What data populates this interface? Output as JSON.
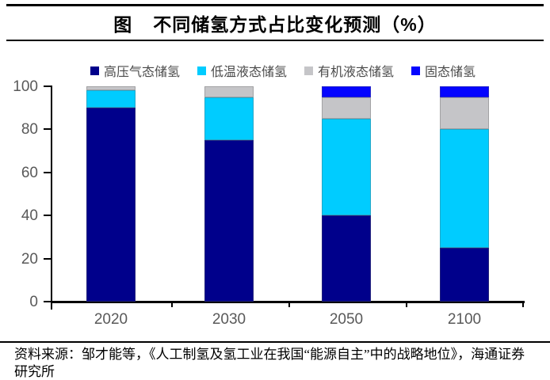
{
  "title": {
    "prefix": "图",
    "text": "不同储氢方式占比变化预测（%）"
  },
  "chart_data": {
    "type": "bar",
    "stacked": true,
    "title": "不同储氢方式占比变化预测（%）",
    "categories": [
      "2020",
      "2030",
      "2050",
      "2100"
    ],
    "series": [
      {
        "name": "高压气态储氢",
        "color": "#00008B",
        "values": [
          90,
          75,
          40,
          25
        ]
      },
      {
        "name": "低温液态储氢",
        "color": "#00CCFF",
        "values": [
          8,
          20,
          45,
          55
        ]
      },
      {
        "name": "有机液态储氢",
        "color": "#C5C5C8",
        "values": [
          2,
          5,
          10,
          15
        ]
      },
      {
        "name": "固态储氢",
        "color": "#0505FF",
        "values": [
          0,
          0,
          5,
          5
        ]
      }
    ],
    "xlabel": "",
    "ylabel": "",
    "ylim": [
      0,
      100
    ],
    "yticks": [
      0,
      20,
      40,
      60,
      80,
      100
    ],
    "legend_position": "top",
    "grid": false,
    "axis_label_color": "#595959",
    "axis_line_color": "#000000"
  },
  "source_note": "资料来源：邹才能等，《人工制氢及氢工业在我国“能源自主”中的战略地位》，海通证券研究所"
}
